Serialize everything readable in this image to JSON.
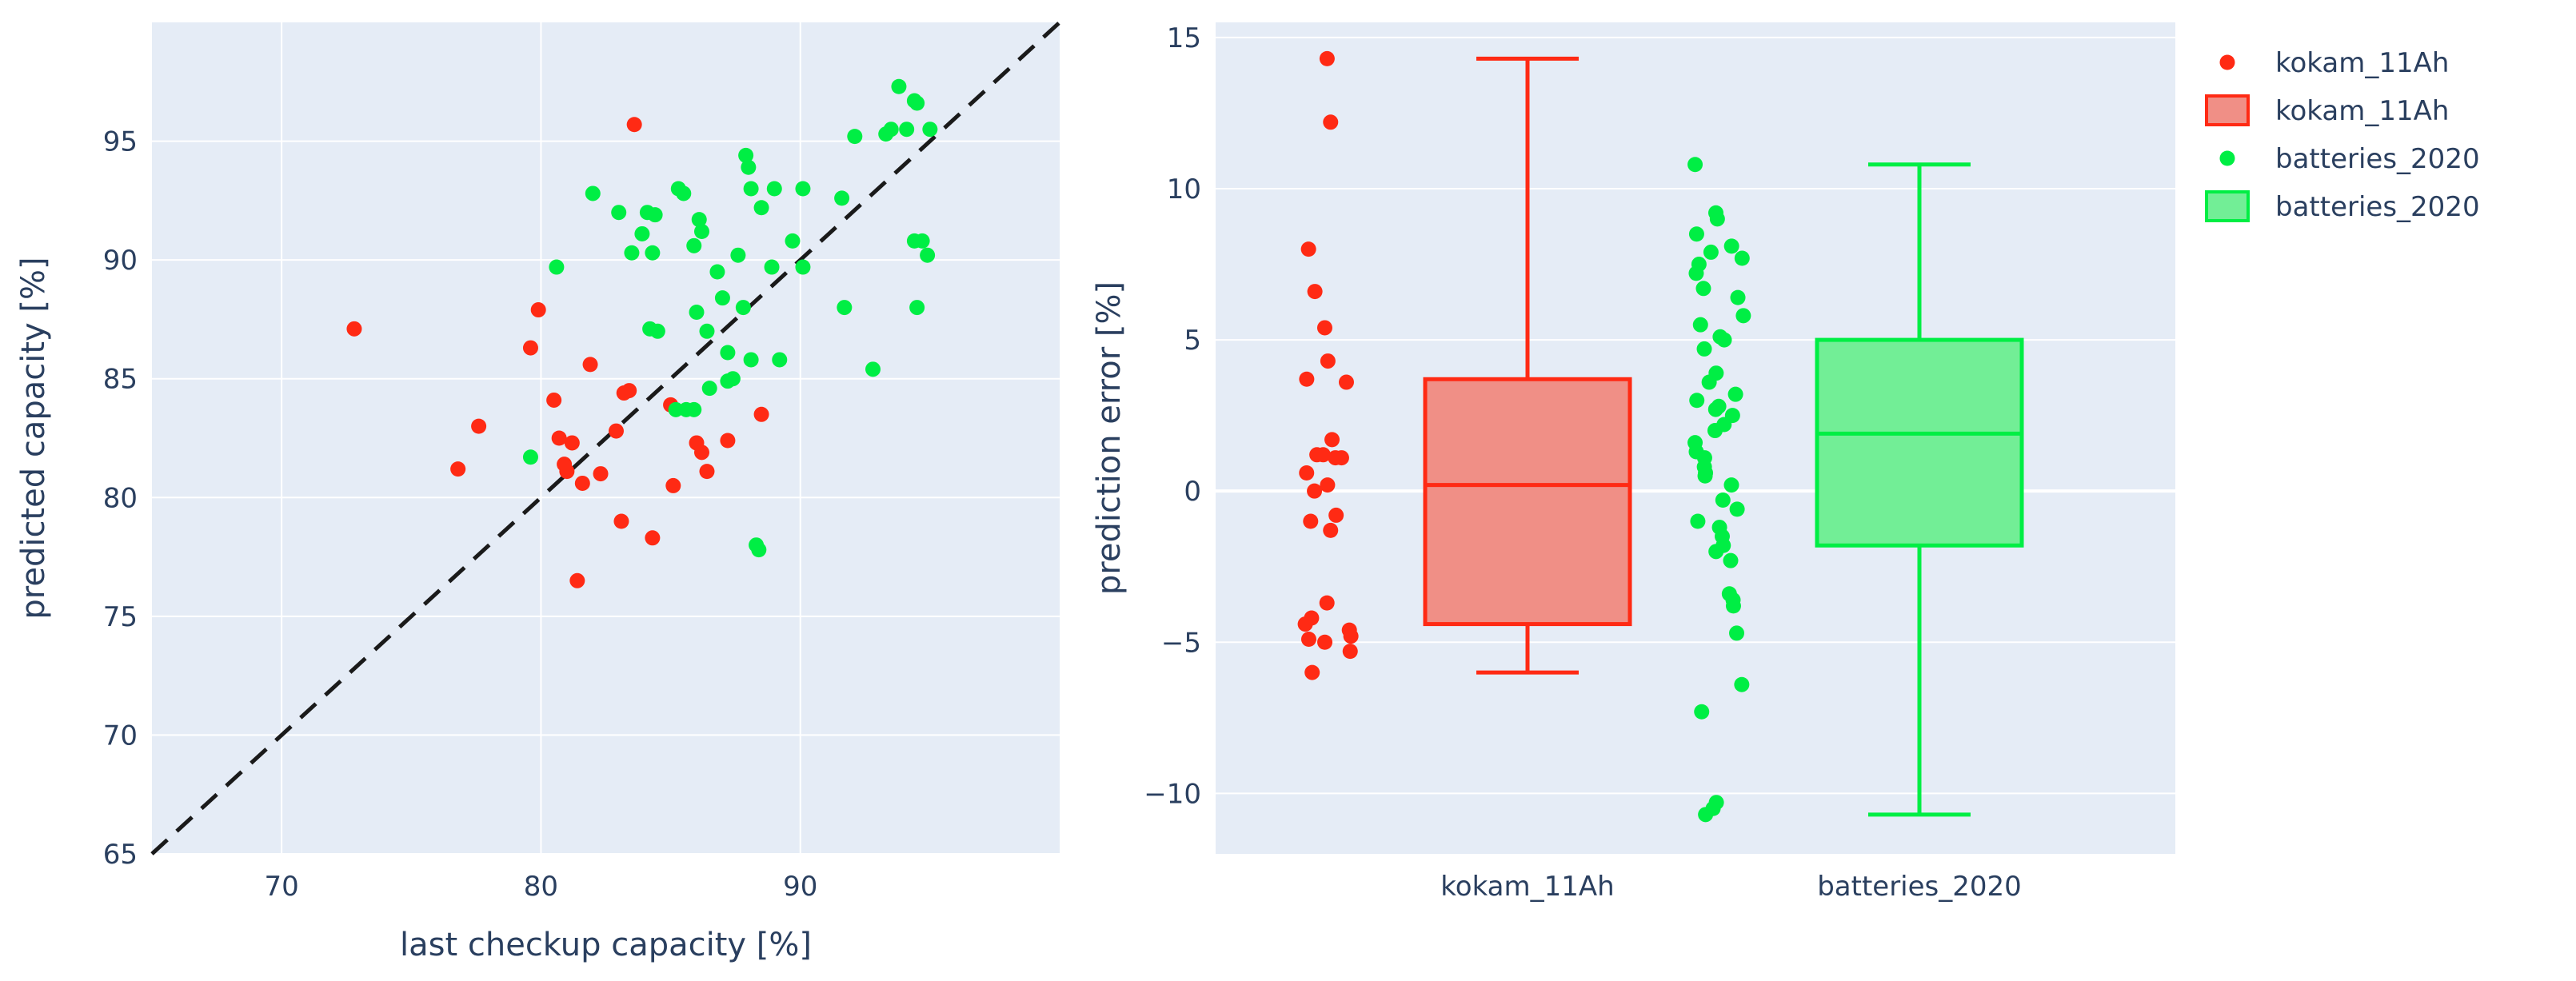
{
  "colors": {
    "plot_bg": "#e5ecf6",
    "grid": "#ffffff",
    "text": "#2a3f5f",
    "kokam": "#ff2a14",
    "kokam_fill": "#f08f86",
    "batteries": "#00ee44",
    "batteries_fill": "#72ee96",
    "diagonal": "#1a1a1a"
  },
  "chart_data": [
    {
      "type": "scatter",
      "xlabel": "last checkup capacity [%]",
      "ylabel": "predicted capacity [%]",
      "xlim": [
        65,
        100
      ],
      "ylim": [
        65,
        100
      ],
      "xticks": [
        70,
        80,
        90
      ],
      "yticks": [
        65,
        70,
        75,
        80,
        85,
        90,
        95
      ],
      "reference_line": "y = x (dashed)",
      "series": [
        {
          "name": "kokam_11Ah",
          "color_key": "kokam",
          "points": [
            [
              72.8,
              87.1
            ],
            [
              76.8,
              81.2
            ],
            [
              77.6,
              83.0
            ],
            [
              79.6,
              86.3
            ],
            [
              79.9,
              87.9
            ],
            [
              80.5,
              84.1
            ],
            [
              80.7,
              82.5
            ],
            [
              80.9,
              81.4
            ],
            [
              81.0,
              81.1
            ],
            [
              81.2,
              82.3
            ],
            [
              81.4,
              76.5
            ],
            [
              81.6,
              80.6
            ],
            [
              81.9,
              85.6
            ],
            [
              82.3,
              81.0
            ],
            [
              82.9,
              82.8
            ],
            [
              83.1,
              79.0
            ],
            [
              83.2,
              84.4
            ],
            [
              83.4,
              84.5
            ],
            [
              83.6,
              95.7
            ],
            [
              84.3,
              78.3
            ],
            [
              85.0,
              83.9
            ],
            [
              85.1,
              80.5
            ],
            [
              86.0,
              82.3
            ],
            [
              86.2,
              81.9
            ],
            [
              86.4,
              81.1
            ],
            [
              87.2,
              82.4
            ],
            [
              88.5,
              83.5
            ]
          ]
        },
        {
          "name": "batteries_2020",
          "color_key": "batteries",
          "points": [
            [
              79.6,
              81.7
            ],
            [
              80.6,
              89.7
            ],
            [
              82.0,
              92.8
            ],
            [
              83.0,
              92.0
            ],
            [
              83.5,
              90.3
            ],
            [
              83.9,
              91.1
            ],
            [
              84.1,
              92.0
            ],
            [
              84.2,
              87.1
            ],
            [
              84.3,
              90.3
            ],
            [
              84.4,
              91.9
            ],
            [
              84.5,
              87.0
            ],
            [
              85.2,
              83.7
            ],
            [
              85.3,
              93.0
            ],
            [
              85.5,
              92.8
            ],
            [
              85.6,
              83.7
            ],
            [
              85.9,
              83.7
            ],
            [
              85.9,
              90.6
            ],
            [
              86.0,
              87.8
            ],
            [
              86.1,
              91.7
            ],
            [
              86.2,
              91.2
            ],
            [
              86.4,
              87.0
            ],
            [
              86.5,
              84.6
            ],
            [
              86.8,
              89.5
            ],
            [
              87.0,
              88.4
            ],
            [
              87.2,
              86.1
            ],
            [
              87.2,
              84.9
            ],
            [
              87.4,
              85.0
            ],
            [
              87.6,
              90.2
            ],
            [
              87.8,
              88.0
            ],
            [
              87.9,
              94.4
            ],
            [
              88.0,
              93.9
            ],
            [
              88.1,
              85.8
            ],
            [
              88.1,
              93.0
            ],
            [
              88.3,
              78.0
            ],
            [
              88.4,
              77.8
            ],
            [
              88.5,
              92.2
            ],
            [
              88.9,
              89.7
            ],
            [
              89.0,
              93.0
            ],
            [
              89.2,
              85.8
            ],
            [
              89.7,
              90.8
            ],
            [
              90.1,
              93.0
            ],
            [
              90.1,
              89.7
            ],
            [
              91.6,
              92.6
            ],
            [
              91.7,
              88.0
            ],
            [
              92.1,
              95.2
            ],
            [
              92.8,
              85.4
            ],
            [
              93.3,
              95.3
            ],
            [
              93.5,
              95.5
            ],
            [
              93.8,
              97.3
            ],
            [
              94.1,
              95.5
            ],
            [
              94.4,
              96.7
            ],
            [
              94.4,
              90.8
            ],
            [
              94.5,
              88.0
            ],
            [
              94.5,
              96.6
            ],
            [
              94.7,
              90.8
            ],
            [
              94.9,
              90.2
            ],
            [
              95.0,
              95.5
            ]
          ]
        }
      ]
    },
    {
      "type": "box",
      "xlabel": "",
      "ylabel": "prediction error [%]",
      "ylim": [
        -12,
        15.5
      ],
      "yticks": [
        -10,
        -5,
        0,
        5,
        10,
        15
      ],
      "ytick_labels": [
        "−10",
        "−5",
        "0",
        "5",
        "10",
        "15"
      ],
      "categories": [
        "kokam_11Ah",
        "batteries_2020"
      ],
      "boxes": [
        {
          "name": "kokam_11Ah",
          "color_key": "kokam",
          "fill_key": "kokam_fill",
          "min": -6.0,
          "q1": -4.4,
          "median": 0.2,
          "q3": 3.7,
          "max": 14.3,
          "points": [
            14.3,
            12.2,
            8.0,
            6.6,
            5.4,
            4.3,
            3.7,
            3.6,
            1.7,
            1.2,
            1.2,
            1.1,
            1.1,
            0.6,
            0.2,
            0.0,
            -0.8,
            -1.0,
            -1.3,
            -3.7,
            -4.2,
            -4.4,
            -4.6,
            -4.8,
            -4.9,
            -5.0,
            -5.3,
            -6.0
          ]
        },
        {
          "name": "batteries_2020",
          "color_key": "batteries",
          "fill_key": "batteries_fill",
          "min": -10.7,
          "q1": -1.8,
          "median": 1.9,
          "q3": 5.0,
          "max": 10.8,
          "points": [
            10.8,
            9.2,
            9.0,
            8.5,
            8.1,
            7.9,
            7.7,
            7.5,
            7.2,
            6.7,
            6.4,
            5.8,
            5.5,
            5.1,
            5.0,
            4.7,
            3.9,
            3.6,
            3.2,
            3.0,
            2.8,
            2.7,
            2.5,
            2.2,
            2.0,
            1.6,
            1.3,
            1.1,
            0.8,
            0.6,
            0.5,
            0.2,
            -0.3,
            -0.6,
            -1.0,
            -1.2,
            -1.5,
            -1.8,
            -2.0,
            -2.3,
            -3.4,
            -3.6,
            -3.8,
            -4.7,
            -6.4,
            -7.3,
            -10.3,
            -10.5,
            -10.7
          ]
        }
      ]
    }
  ],
  "legend": {
    "position": "top-right",
    "items": [
      {
        "label": "kokam_11Ah",
        "kind": "marker",
        "color_key": "kokam"
      },
      {
        "label": "kokam_11Ah",
        "kind": "box",
        "color_key": "kokam",
        "fill_key": "kokam_fill"
      },
      {
        "label": "batteries_2020",
        "kind": "marker",
        "color_key": "batteries"
      },
      {
        "label": "batteries_2020",
        "kind": "box",
        "color_key": "batteries",
        "fill_key": "batteries_fill"
      }
    ]
  }
}
